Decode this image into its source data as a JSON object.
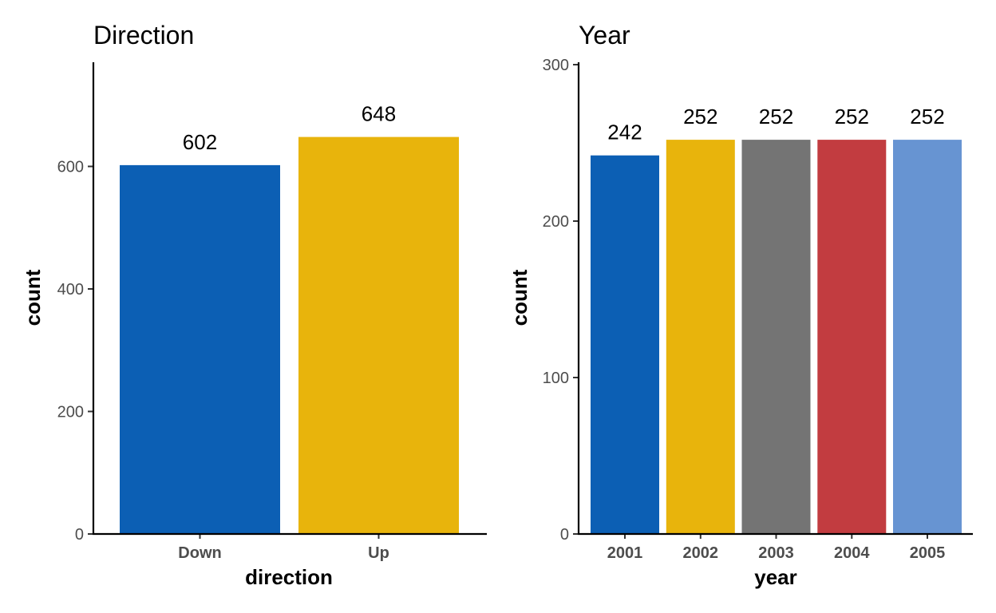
{
  "chart_data": [
    {
      "type": "bar",
      "title": "Direction",
      "xlabel": "direction",
      "ylabel": "count",
      "categories": [
        "Down",
        "Up"
      ],
      "values": [
        602,
        648
      ],
      "value_labels": [
        "602",
        "648"
      ],
      "colors": [
        "#0C5FB4",
        "#E8B40C"
      ],
      "ylim": [
        0,
        770
      ],
      "yticks": [
        0,
        200,
        400,
        600
      ],
      "ytick_labels": [
        "0",
        "200",
        "400",
        "600"
      ],
      "grid": false,
      "legend": "none"
    },
    {
      "type": "bar",
      "title": "Year",
      "xlabel": "year",
      "ylabel": "count",
      "categories": [
        "2001",
        "2002",
        "2003",
        "2004",
        "2005"
      ],
      "values": [
        242,
        252,
        252,
        252,
        252
      ],
      "value_labels": [
        "242",
        "252",
        "252",
        "252",
        "252"
      ],
      "colors": [
        "#0C5FB4",
        "#E8B40C",
        "#747474",
        "#C23C40",
        "#6794D2"
      ],
      "ylim": [
        0,
        300
      ],
      "yticks": [
        0,
        100,
        200,
        300
      ],
      "ytick_labels": [
        "0",
        "100",
        "200",
        "300"
      ],
      "grid": false,
      "legend": "none"
    }
  ]
}
